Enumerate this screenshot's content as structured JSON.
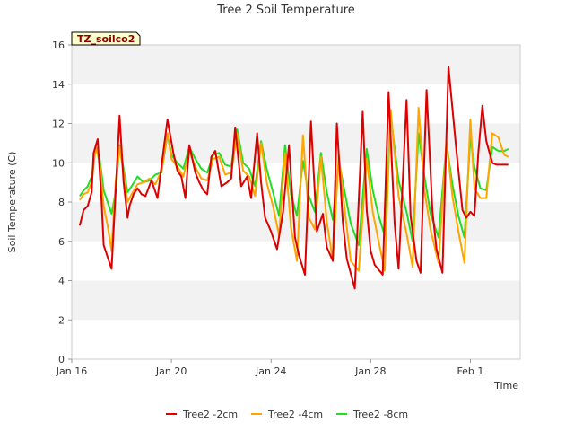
{
  "chart_data": {
    "type": "line",
    "title": "Tree 2 Soil Temperature",
    "xlabel": "Time",
    "ylabel": "Soil Temperature (C)",
    "site_label": "TZ_soilco2",
    "x_is_days_from": "Jan 16",
    "xlim": [
      0,
      22.5
    ],
    "ylim": [
      0,
      16
    ],
    "yticks": [
      0,
      2,
      4,
      6,
      8,
      10,
      12,
      14,
      16
    ],
    "xticks": [
      {
        "value": 0,
        "label": "Jan 16"
      },
      {
        "value": 5,
        "label": "Jan 20"
      },
      {
        "value": 10,
        "label": "Jan 24"
      },
      {
        "value": 15,
        "label": "Jan 28"
      },
      {
        "value": 20,
        "label": "Feb 1"
      }
    ],
    "grid": "horizontal-bands",
    "legend_position": "bottom",
    "series": [
      {
        "name": "Tree2 -2cm",
        "color": "#dd0000",
        "x": [
          0.4,
          0.6,
          0.8,
          1.0,
          1.1,
          1.3,
          1.5,
          1.6,
          1.8,
          2.0,
          2.2,
          2.4,
          2.6,
          2.8,
          2.9,
          3.1,
          3.3,
          3.5,
          3.7,
          4.0,
          4.3,
          4.5,
          4.8,
          5.1,
          5.3,
          5.5,
          5.7,
          5.9,
          6.2,
          6.4,
          6.6,
          6.8,
          7.0,
          7.2,
          7.5,
          7.8,
          8.0,
          8.2,
          8.5,
          8.8,
          9.0,
          9.3,
          9.5,
          9.7,
          10.0,
          10.3,
          10.6,
          10.9,
          11.2,
          11.4,
          11.7,
          12.0,
          12.3,
          12.6,
          12.8,
          13.1,
          13.3,
          13.6,
          13.8,
          14.2,
          14.6,
          14.8,
          15.0,
          15.2,
          15.6,
          15.9,
          16.2,
          16.4,
          16.8,
          17.0,
          17.3,
          17.5,
          17.8,
          18.1,
          18.3,
          18.6,
          18.9,
          19.3,
          19.6,
          19.8,
          20.0,
          20.2,
          20.4,
          20.6,
          20.8,
          21.1,
          21.3,
          21.5,
          21.7,
          21.9
        ],
        "values": [
          6.8,
          7.6,
          7.8,
          8.5,
          10.5,
          11.2,
          8.0,
          5.8,
          5.2,
          4.6,
          8.5,
          12.4,
          9.0,
          7.2,
          7.8,
          8.4,
          8.7,
          8.4,
          8.3,
          9.1,
          8.2,
          9.8,
          12.2,
          10.5,
          9.6,
          9.3,
          8.2,
          10.9,
          9.5,
          9.0,
          8.6,
          8.4,
          10.3,
          10.6,
          8.8,
          9.0,
          9.2,
          11.8,
          8.8,
          9.3,
          8.2,
          11.5,
          9.0,
          7.2,
          6.5,
          5.6,
          7.5,
          10.9,
          6.2,
          5.3,
          4.3,
          12.1,
          6.5,
          7.4,
          5.7,
          5.0,
          12.0,
          7.0,
          5.1,
          3.6,
          12.6,
          7.6,
          5.5,
          4.8,
          4.3,
          13.6,
          6.9,
          4.6,
          13.2,
          7.3,
          5.0,
          4.4,
          13.7,
          7.5,
          5.6,
          4.4,
          14.9,
          10.6,
          7.6,
          7.2,
          7.5,
          7.3,
          10.5,
          12.9,
          11.1,
          10.0,
          9.9,
          9.9,
          9.9,
          9.9
        ]
      },
      {
        "name": "Tree2 -4cm",
        "color": "#ffa500",
        "x": [
          0.4,
          0.6,
          0.8,
          1.0,
          1.2,
          1.4,
          1.6,
          1.8,
          2.0,
          2.2,
          2.4,
          2.6,
          2.8,
          3.0,
          3.3,
          3.6,
          3.9,
          4.2,
          4.5,
          4.8,
          5.0,
          5.3,
          5.6,
          5.9,
          6.2,
          6.5,
          6.8,
          7.1,
          7.4,
          7.7,
          8.0,
          8.3,
          8.6,
          8.9,
          9.2,
          9.5,
          9.8,
          10.1,
          10.4,
          10.7,
          11.0,
          11.3,
          11.6,
          11.9,
          12.2,
          12.5,
          12.8,
          13.1,
          13.4,
          13.7,
          14.0,
          14.4,
          14.8,
          15.1,
          15.4,
          15.7,
          16.0,
          16.4,
          16.8,
          17.1,
          17.4,
          17.7,
          18.0,
          18.4,
          18.8,
          19.1,
          19.4,
          19.7,
          20.0,
          20.2,
          20.5,
          20.8,
          21.1,
          21.4,
          21.7,
          21.9
        ],
        "values": [
          8.1,
          8.4,
          8.5,
          9.0,
          10.9,
          10.0,
          7.8,
          6.8,
          5.5,
          9.0,
          10.8,
          9.5,
          8.0,
          8.4,
          8.9,
          9.0,
          9.2,
          8.9,
          9.6,
          11.5,
          10.2,
          9.8,
          9.3,
          10.6,
          9.8,
          9.2,
          9.1,
          10.2,
          10.3,
          9.4,
          9.5,
          11.5,
          9.6,
          9.3,
          8.3,
          11.0,
          8.9,
          7.8,
          6.3,
          10.5,
          6.7,
          5.0,
          11.4,
          7.2,
          6.6,
          10.3,
          7.0,
          5.0,
          10.4,
          7.6,
          5.0,
          4.5,
          10.2,
          7.5,
          6.0,
          4.5,
          12.7,
          8.3,
          6.4,
          4.7,
          12.8,
          8.6,
          6.6,
          4.9,
          11.1,
          8.3,
          6.5,
          4.9,
          12.2,
          8.7,
          8.2,
          8.2,
          11.5,
          11.3,
          10.4,
          10.3
        ]
      },
      {
        "name": "Tree2 -8cm",
        "color": "#22dd22",
        "x": [
          0.4,
          0.6,
          0.8,
          1.0,
          1.2,
          1.4,
          1.6,
          1.8,
          2.0,
          2.2,
          2.4,
          2.6,
          2.8,
          3.0,
          3.3,
          3.6,
          3.9,
          4.2,
          4.5,
          4.8,
          5.0,
          5.3,
          5.6,
          5.9,
          6.2,
          6.5,
          6.8,
          7.1,
          7.4,
          7.7,
          8.0,
          8.3,
          8.6,
          8.9,
          9.2,
          9.5,
          9.8,
          10.1,
          10.4,
          10.7,
          11.0,
          11.3,
          11.6,
          11.9,
          12.2,
          12.5,
          12.8,
          13.1,
          13.4,
          13.7,
          14.0,
          14.4,
          14.8,
          15.1,
          15.4,
          15.7,
          16.0,
          16.4,
          16.8,
          17.1,
          17.4,
          17.7,
          18.0,
          18.4,
          18.8,
          19.1,
          19.4,
          19.7,
          20.0,
          20.2,
          20.5,
          20.8,
          21.1,
          21.4,
          21.7,
          21.9
        ],
        "values": [
          8.3,
          8.6,
          8.8,
          9.3,
          10.7,
          10.2,
          8.6,
          8.0,
          7.4,
          8.5,
          10.9,
          9.7,
          8.5,
          8.8,
          9.3,
          9.0,
          9.1,
          9.4,
          9.5,
          11.4,
          10.4,
          10.0,
          9.7,
          10.8,
          10.2,
          9.7,
          9.5,
          10.4,
          10.5,
          9.9,
          9.8,
          11.7,
          10.0,
          9.7,
          8.8,
          11.1,
          9.6,
          8.5,
          7.3,
          10.9,
          8.4,
          7.3,
          10.1,
          8.3,
          7.5,
          10.5,
          8.5,
          7.1,
          10.1,
          8.5,
          6.9,
          5.8,
          10.7,
          8.6,
          7.3,
          6.3,
          12.4,
          9.1,
          7.5,
          6.0,
          11.5,
          9.3,
          7.4,
          6.2,
          11.0,
          8.9,
          7.3,
          6.2,
          11.3,
          9.8,
          8.7,
          8.6,
          10.8,
          10.6,
          10.6,
          10.7
        ]
      }
    ]
  }
}
